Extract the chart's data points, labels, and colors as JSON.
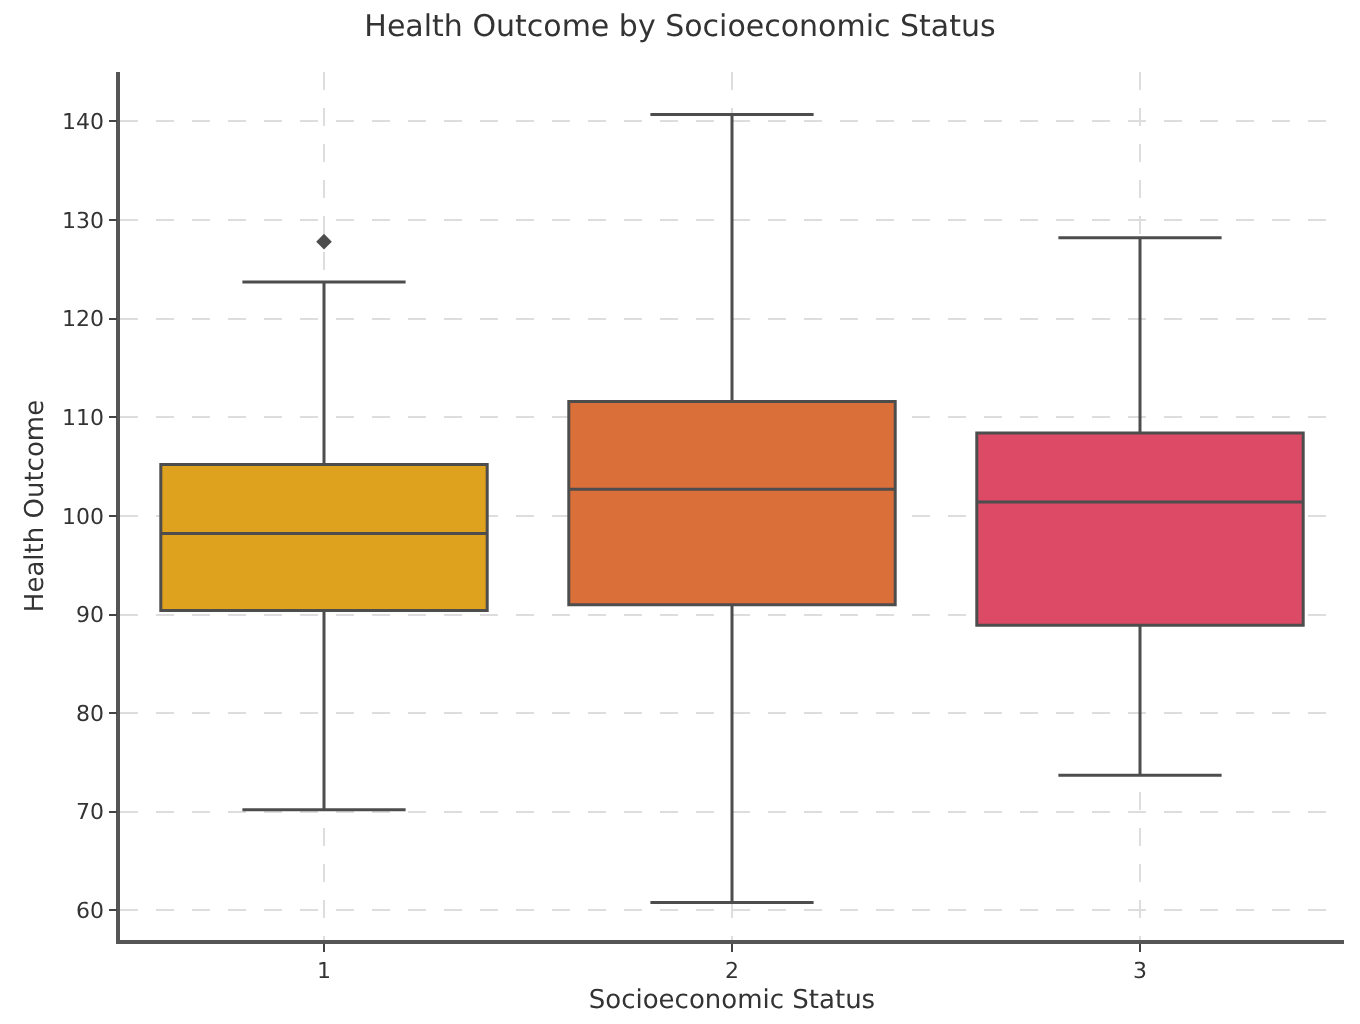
{
  "chart_data": {
    "type": "box",
    "title": "Health Outcome by Socioeconomic Status",
    "xlabel": "Socioeconomic Status",
    "ylabel": "Health Outcome",
    "categories": [
      "1",
      "2",
      "3"
    ],
    "colors": [
      "#dfa21f",
      "#db6f3a",
      "#dc4a66"
    ],
    "boxes": [
      {
        "low": 70.2,
        "q1": 90.4,
        "median": 98.2,
        "q3": 105.2,
        "high": 123.7,
        "outliers": [
          127.8
        ]
      },
      {
        "low": 60.8,
        "q1": 91.0,
        "median": 102.7,
        "q3": 111.6,
        "high": 140.7
      },
      {
        "low": 73.7,
        "q1": 88.9,
        "median": 101.4,
        "q3": 108.4,
        "high": 128.2
      }
    ],
    "ylim": [
      57,
      145
    ],
    "yticks": [
      60,
      70,
      80,
      90,
      100,
      110,
      120,
      130,
      140
    ],
    "grid": true,
    "marker": "diamond"
  }
}
